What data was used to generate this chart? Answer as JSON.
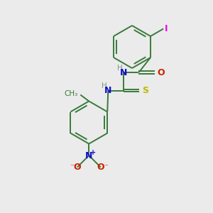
{
  "background_color": "#ebebeb",
  "bond_color": "#3a7a3a",
  "bond_lw": 1.4,
  "atom_colors": {
    "I": "#ee00ee",
    "N": "#1010cc",
    "O": "#cc2200",
    "S": "#bbbb00",
    "C": "#3a7a3a",
    "H": "#7a9a7a"
  },
  "figsize": [
    3.0,
    3.0
  ],
  "dpi": 100,
  "xlim": [
    0,
    10
  ],
  "ylim": [
    0,
    10
  ]
}
